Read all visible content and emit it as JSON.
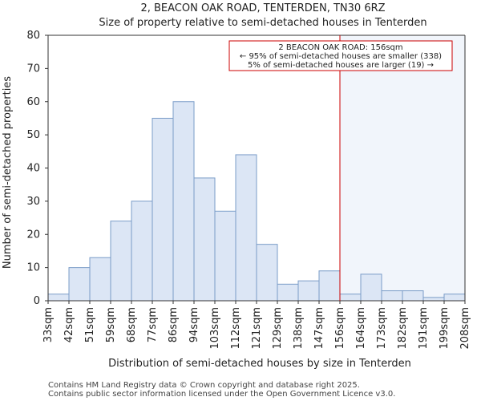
{
  "chart_data": {
    "type": "bar",
    "title": "2, BEACON OAK ROAD, TENTERDEN, TN30 6RZ",
    "subtitle": "Size of property relative to semi-detached houses in Tenterden",
    "xlabel": "Distribution of semi-detached houses by size in Tenterden",
    "ylabel": "Number of semi-detached properties",
    "ylim": [
      0,
      80
    ],
    "yticks": [
      0,
      10,
      20,
      30,
      40,
      50,
      60,
      70,
      80
    ],
    "tick_labels": [
      "33sqm",
      "42sqm",
      "51sqm",
      "59sqm",
      "68sqm",
      "77sqm",
      "86sqm",
      "94sqm",
      "103sqm",
      "112sqm",
      "121sqm",
      "129sqm",
      "138sqm",
      "147sqm",
      "156sqm",
      "164sqm",
      "173sqm",
      "182sqm",
      "191sqm",
      "199sqm",
      "208sqm"
    ],
    "values": [
      2,
      10,
      13,
      24,
      30,
      55,
      60,
      37,
      27,
      44,
      17,
      5,
      6,
      9,
      2,
      8,
      3,
      3,
      1,
      2
    ],
    "marker": {
      "value": 156,
      "label": "156sqm"
    },
    "annotation": [
      "2 BEACON OAK ROAD: 156sqm",
      "← 95% of semi-detached houses are smaller (338)",
      "5% of semi-detached houses are larger (19) →"
    ],
    "colors": {
      "bar_fill": "#dce6f5",
      "bar_edge": "#7a9cc8",
      "marker": "#cc0000",
      "shade": "#e8eef8",
      "axis": "#333333"
    }
  },
  "footer": {
    "line1": "Contains HM Land Registry data © Crown copyright and database right 2025.",
    "line2": "Contains public sector information licensed under the Open Government Licence v3.0."
  }
}
